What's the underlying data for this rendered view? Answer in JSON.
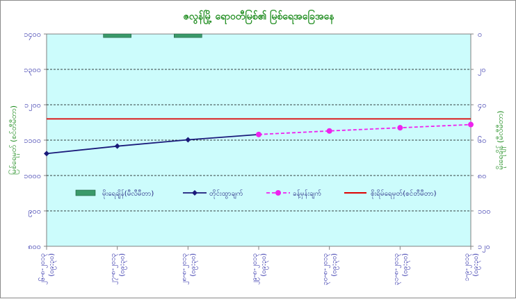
{
  "chart_data": {
    "type": "line",
    "title": "ဇလွန်မြို့ ရောဝတီမြစ်၏ မြစ်ရေအခြေအနေ",
    "ylabel_left": "မြစ်ရေမှတ် (စင်တီမီတာ)",
    "ylabel_right": "မိုးရေချိန် (မီလီမီတာ)",
    "y_left_ticks": [
      "၁၄၀၀",
      "၁၃၀၀",
      "၁၂၀၀",
      "၁၁၀၀",
      "၁၀၀၀",
      "၉၀၀",
      "၈၀၀"
    ],
    "y_left_range": [
      800,
      1400
    ],
    "y_right_ticks": [
      "၀",
      "၂၀",
      "၄၀",
      "၆၀",
      "၈၀",
      "၁၀၀",
      "၁၂၀"
    ],
    "y_right_range": [
      0,
      120
    ],
    "y_right_inverted": true,
    "categories": [
      "၂၆-၈-၂၀၁၃ (၀၉:၃၀)",
      "၂၇-၈-၂၀၁၃ (၀၉:၃၀)",
      "၂၈-၈-၂၀၁၃ (၀၉:၃၀)",
      "၂၉-၈-၂၀၁၃ (၀၉:၃၀)",
      "၃၀-၈-၂၀၁၃ (၀၉:၃၀)",
      "၃၁-၈-၂၀၁၃ (၀၉:၃၀)",
      "၁-၉-၂၀၁၃ (၀၉:၃၀)"
    ],
    "series": [
      {
        "name": "မိုးရေချိန်(မီလီမီတာ)",
        "kind": "bar",
        "axis": "right",
        "color": "#3a9a6a",
        "values": [
          null,
          2,
          2,
          null,
          null,
          null,
          null
        ]
      },
      {
        "name": "တိုင်းထွာချက်",
        "kind": "line",
        "axis": "left",
        "color": "#1a1a7a",
        "values": [
          1062,
          1083,
          1101,
          1116,
          null,
          null,
          null
        ]
      },
      {
        "name": "ခန့်မှန်းချက်",
        "kind": "line-dashed",
        "axis": "left",
        "color": "#ee22ee",
        "values": [
          null,
          null,
          null,
          1116,
          1126,
          1135,
          1144
        ]
      },
      {
        "name": "စိုးရိမ်ရေမှတ်(စင်တီမီတာ)",
        "kind": "hline",
        "axis": "left",
        "color": "#dd0000",
        "value": 1160
      }
    ],
    "legend_position": "bottom-center",
    "colors": {
      "plot_bg": "#ccfcfc",
      "title": "#1e8c1e",
      "axis_text": "#1a1aa0"
    }
  }
}
